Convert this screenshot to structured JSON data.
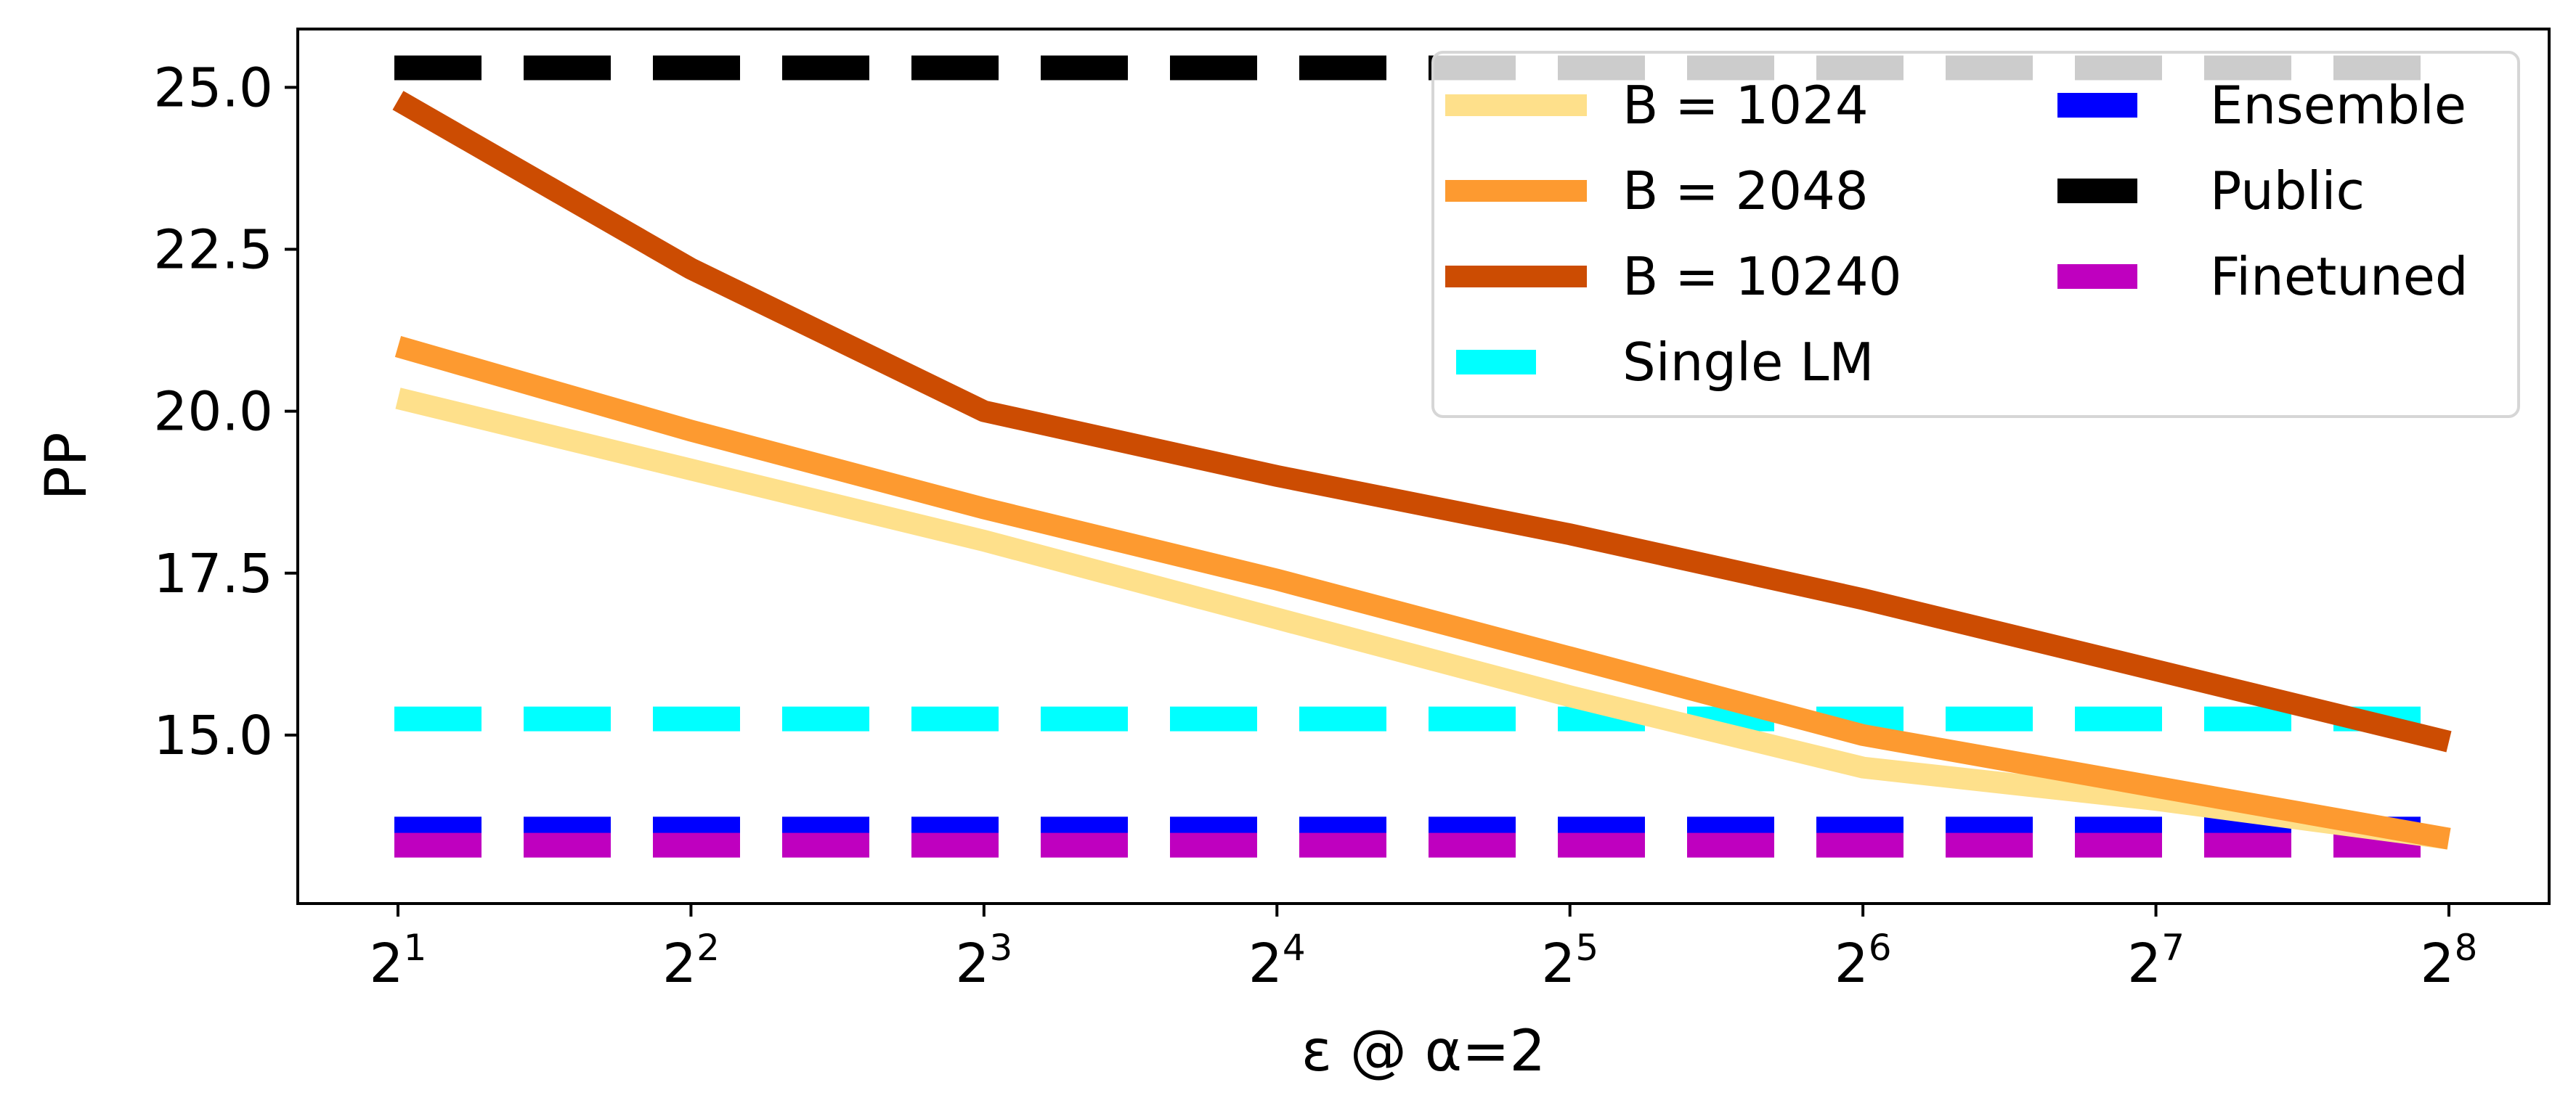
{
  "chart_data": {
    "type": "line",
    "xlabel": "ε @ α=2",
    "ylabel": "PP",
    "x_scale": "log2",
    "x": [
      2,
      4,
      8,
      16,
      32,
      64,
      128,
      256
    ],
    "x_tick_labels": [
      {
        "base": "2",
        "exp": "1"
      },
      {
        "base": "2",
        "exp": "2"
      },
      {
        "base": "2",
        "exp": "3"
      },
      {
        "base": "2",
        "exp": "4"
      },
      {
        "base": "2",
        "exp": "5"
      },
      {
        "base": "2",
        "exp": "6"
      },
      {
        "base": "2",
        "exp": "7"
      },
      {
        "base": "2",
        "exp": "8"
      }
    ],
    "y_ticks": [
      15.0,
      17.5,
      20.0,
      22.5,
      25.0
    ],
    "y_tick_labels": [
      "15.0",
      "17.5",
      "20.0",
      "22.5",
      "25.0"
    ],
    "ylim": [
      12.4,
      25.9
    ],
    "grid": false,
    "legend_position": "top-right",
    "series": [
      {
        "name": "B = 1024",
        "style": "solid",
        "color": "#FEE08B",
        "values": [
          20.2,
          19.1,
          18.0,
          16.8,
          15.6,
          14.5,
          14.0,
          13.4
        ]
      },
      {
        "name": "B = 2048",
        "style": "solid",
        "color": "#FD9A30",
        "values": [
          21.0,
          19.7,
          18.5,
          17.4,
          16.2,
          15.0,
          14.2,
          13.4
        ]
      },
      {
        "name": "B = 10240",
        "style": "solid",
        "color": "#CC4C02",
        "values": [
          24.8,
          22.2,
          20.0,
          19.0,
          18.1,
          17.1,
          16.0,
          14.9
        ]
      }
    ],
    "reference_lines": [
      {
        "name": "Single LM",
        "style": "dashed",
        "color": "#00FFFF",
        "value": 15.25
      },
      {
        "name": "Ensemble",
        "style": "dashed",
        "color": "#0000FF",
        "value": 13.55
      },
      {
        "name": "Public",
        "style": "dashed",
        "color": "#000000",
        "value": 25.3
      },
      {
        "name": "Finetuned",
        "style": "dashed",
        "color": "#BF00BF",
        "value": 13.3
      }
    ],
    "legend_order": [
      "B = 1024",
      "B = 2048",
      "B = 10240",
      "Single LM",
      "Ensemble",
      "Public",
      "Finetuned"
    ]
  }
}
